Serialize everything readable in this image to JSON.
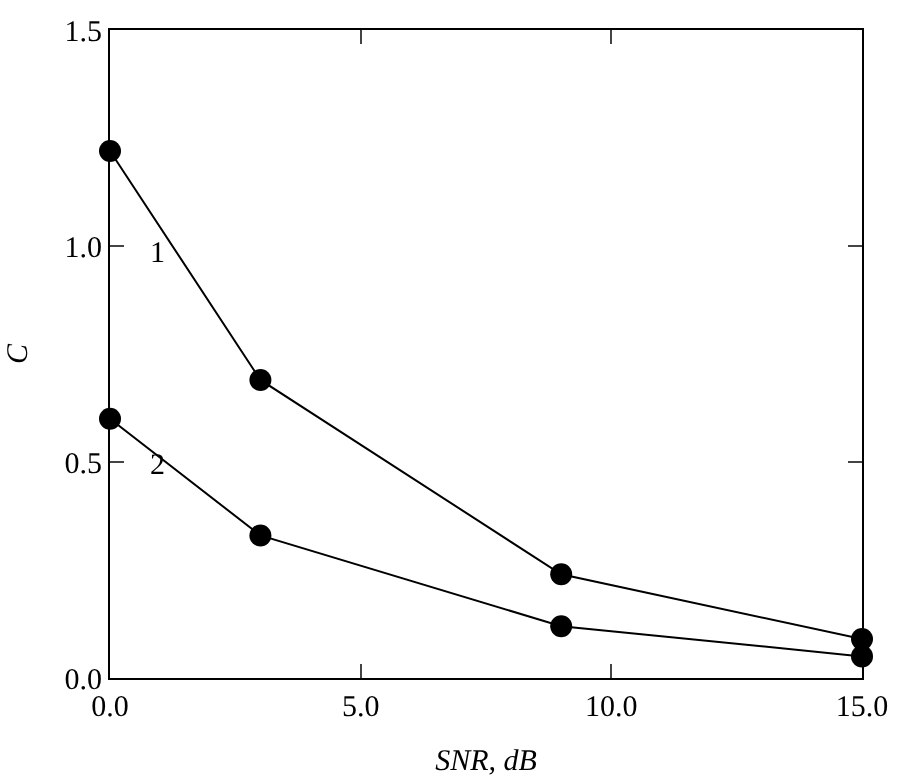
{
  "chart_data": {
    "type": "line",
    "xlabel": "SNR, dB",
    "ylabel": "C",
    "x": [
      0,
      3,
      9,
      15
    ],
    "series": [
      {
        "name": "1",
        "color": "#000000",
        "values": [
          1.22,
          0.69,
          0.24,
          0.09
        ]
      },
      {
        "name": "2",
        "color": "#000000",
        "values": [
          0.6,
          0.33,
          0.12,
          0.05
        ]
      }
    ],
    "xlim": [
      0,
      15
    ],
    "xticks": [
      {
        "value": 0,
        "label": "0.0"
      },
      {
        "value": 5,
        "label": "5.0"
      },
      {
        "value": 10,
        "label": "10.0"
      },
      {
        "value": 15,
        "label": "15.0"
      }
    ],
    "ylim": [
      0,
      1.5
    ],
    "yticks": [
      {
        "value": 0,
        "label": "0.0"
      },
      {
        "value": 0.5,
        "label": "0.5"
      },
      {
        "value": 1,
        "label": "1.0"
      },
      {
        "value": 1.5,
        "label": "1.5"
      }
    ],
    "marker": "circle",
    "line_style": "solid",
    "grid": false,
    "legend": false
  }
}
